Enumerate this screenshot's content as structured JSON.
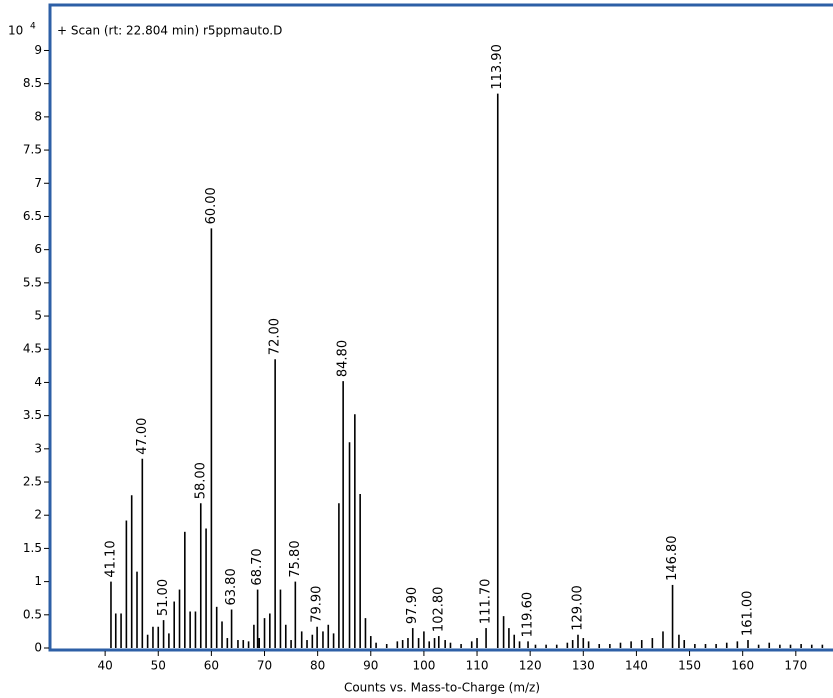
{
  "chart_data": {
    "type": "stem",
    "title": "+ Scan (rt: 22.804 min) r5ppmauto.D",
    "xlabel": "Counts vs. Mass-to-Charge (m/z)",
    "y_scale": {
      "base": "10",
      "exponent": "4"
    },
    "color": "#000000",
    "frame_color": "#2d5fa6",
    "x": [
      41.1,
      42,
      43,
      44,
      45,
      46,
      47,
      48,
      49,
      50,
      51,
      52,
      53,
      54,
      55,
      56,
      57,
      58,
      59,
      60,
      61,
      62,
      63,
      63.8,
      65,
      66,
      67,
      68,
      68.7,
      69,
      70,
      71,
      72,
      73,
      74,
      75,
      75.8,
      77,
      78,
      79,
      79.9,
      81,
      82,
      83,
      84,
      84.8,
      86,
      87,
      88,
      89,
      90,
      91,
      93,
      95,
      96,
      97,
      97.9,
      99,
      100,
      101,
      102,
      102.8,
      104,
      105,
      107,
      109,
      110,
      111.7,
      113.9,
      115,
      116,
      117,
      118,
      119.6,
      121,
      123,
      125,
      127,
      128,
      129,
      130,
      131,
      133,
      135,
      137,
      139,
      141,
      143,
      145,
      146.8,
      148,
      149,
      151,
      153,
      155,
      157,
      159,
      161,
      163,
      165,
      167,
      169,
      171,
      173,
      175
    ],
    "values": [
      1.0,
      0.52,
      0.52,
      1.92,
      2.3,
      1.15,
      2.85,
      0.2,
      0.32,
      0.32,
      0.42,
      0.22,
      0.7,
      0.88,
      1.75,
      0.55,
      0.55,
      2.18,
      1.8,
      6.32,
      0.62,
      0.4,
      0.15,
      0.58,
      0.12,
      0.12,
      0.1,
      0.35,
      0.88,
      0.15,
      0.45,
      0.52,
      4.35,
      0.88,
      0.35,
      0.12,
      1.0,
      0.25,
      0.12,
      0.2,
      0.32,
      0.25,
      0.35,
      0.22,
      2.18,
      4.02,
      3.1,
      3.52,
      2.32,
      0.45,
      0.18,
      0.08,
      0.06,
      0.1,
      0.12,
      0.15,
      0.3,
      0.15,
      0.25,
      0.1,
      0.15,
      0.18,
      0.12,
      0.08,
      0.06,
      0.1,
      0.15,
      0.3,
      8.35,
      0.48,
      0.3,
      0.2,
      0.1,
      0.1,
      0.05,
      0.05,
      0.05,
      0.08,
      0.12,
      0.2,
      0.15,
      0.1,
      0.06,
      0.06,
      0.08,
      0.1,
      0.12,
      0.15,
      0.25,
      0.95,
      0.2,
      0.12,
      0.06,
      0.06,
      0.06,
      0.08,
      0.1,
      0.12,
      0.05,
      0.08,
      0.05,
      0.05,
      0.06,
      0.05,
      0.05
    ],
    "x_labels": [
      "41.10",
      null,
      null,
      null,
      null,
      null,
      "47.00",
      null,
      null,
      null,
      "51.00",
      null,
      null,
      null,
      null,
      null,
      null,
      "58.00",
      null,
      "60.00",
      null,
      null,
      null,
      "63.80",
      null,
      null,
      null,
      null,
      "68.70",
      null,
      null,
      null,
      "72.00",
      null,
      null,
      null,
      "75.80",
      null,
      null,
      null,
      "79.90",
      null,
      null,
      null,
      null,
      "84.80",
      null,
      null,
      null,
      null,
      null,
      null,
      null,
      null,
      null,
      null,
      "97.90",
      null,
      null,
      null,
      null,
      "102.80",
      null,
      null,
      null,
      null,
      null,
      "111.70",
      "113.90",
      null,
      null,
      null,
      null,
      "119.60",
      null,
      null,
      null,
      null,
      null,
      "129.00",
      null,
      null,
      null,
      null,
      null,
      null,
      null,
      null,
      null,
      "146.80",
      null,
      null,
      null,
      null,
      null,
      null,
      null,
      "161.00",
      null,
      null,
      null,
      null,
      null,
      null,
      null
    ],
    "xlim": [
      30,
      177
    ],
    "xticks": [
      40,
      50,
      60,
      70,
      80,
      90,
      100,
      110,
      120,
      130,
      140,
      150,
      160,
      170
    ],
    "ylim": [
      0,
      9.67
    ],
    "yticks": [
      0,
      0.5,
      1,
      1.5,
      2,
      2.5,
      3,
      3.5,
      4,
      4.5,
      5,
      5.5,
      6,
      6.5,
      7,
      7.5,
      8,
      8.5,
      9
    ]
  }
}
